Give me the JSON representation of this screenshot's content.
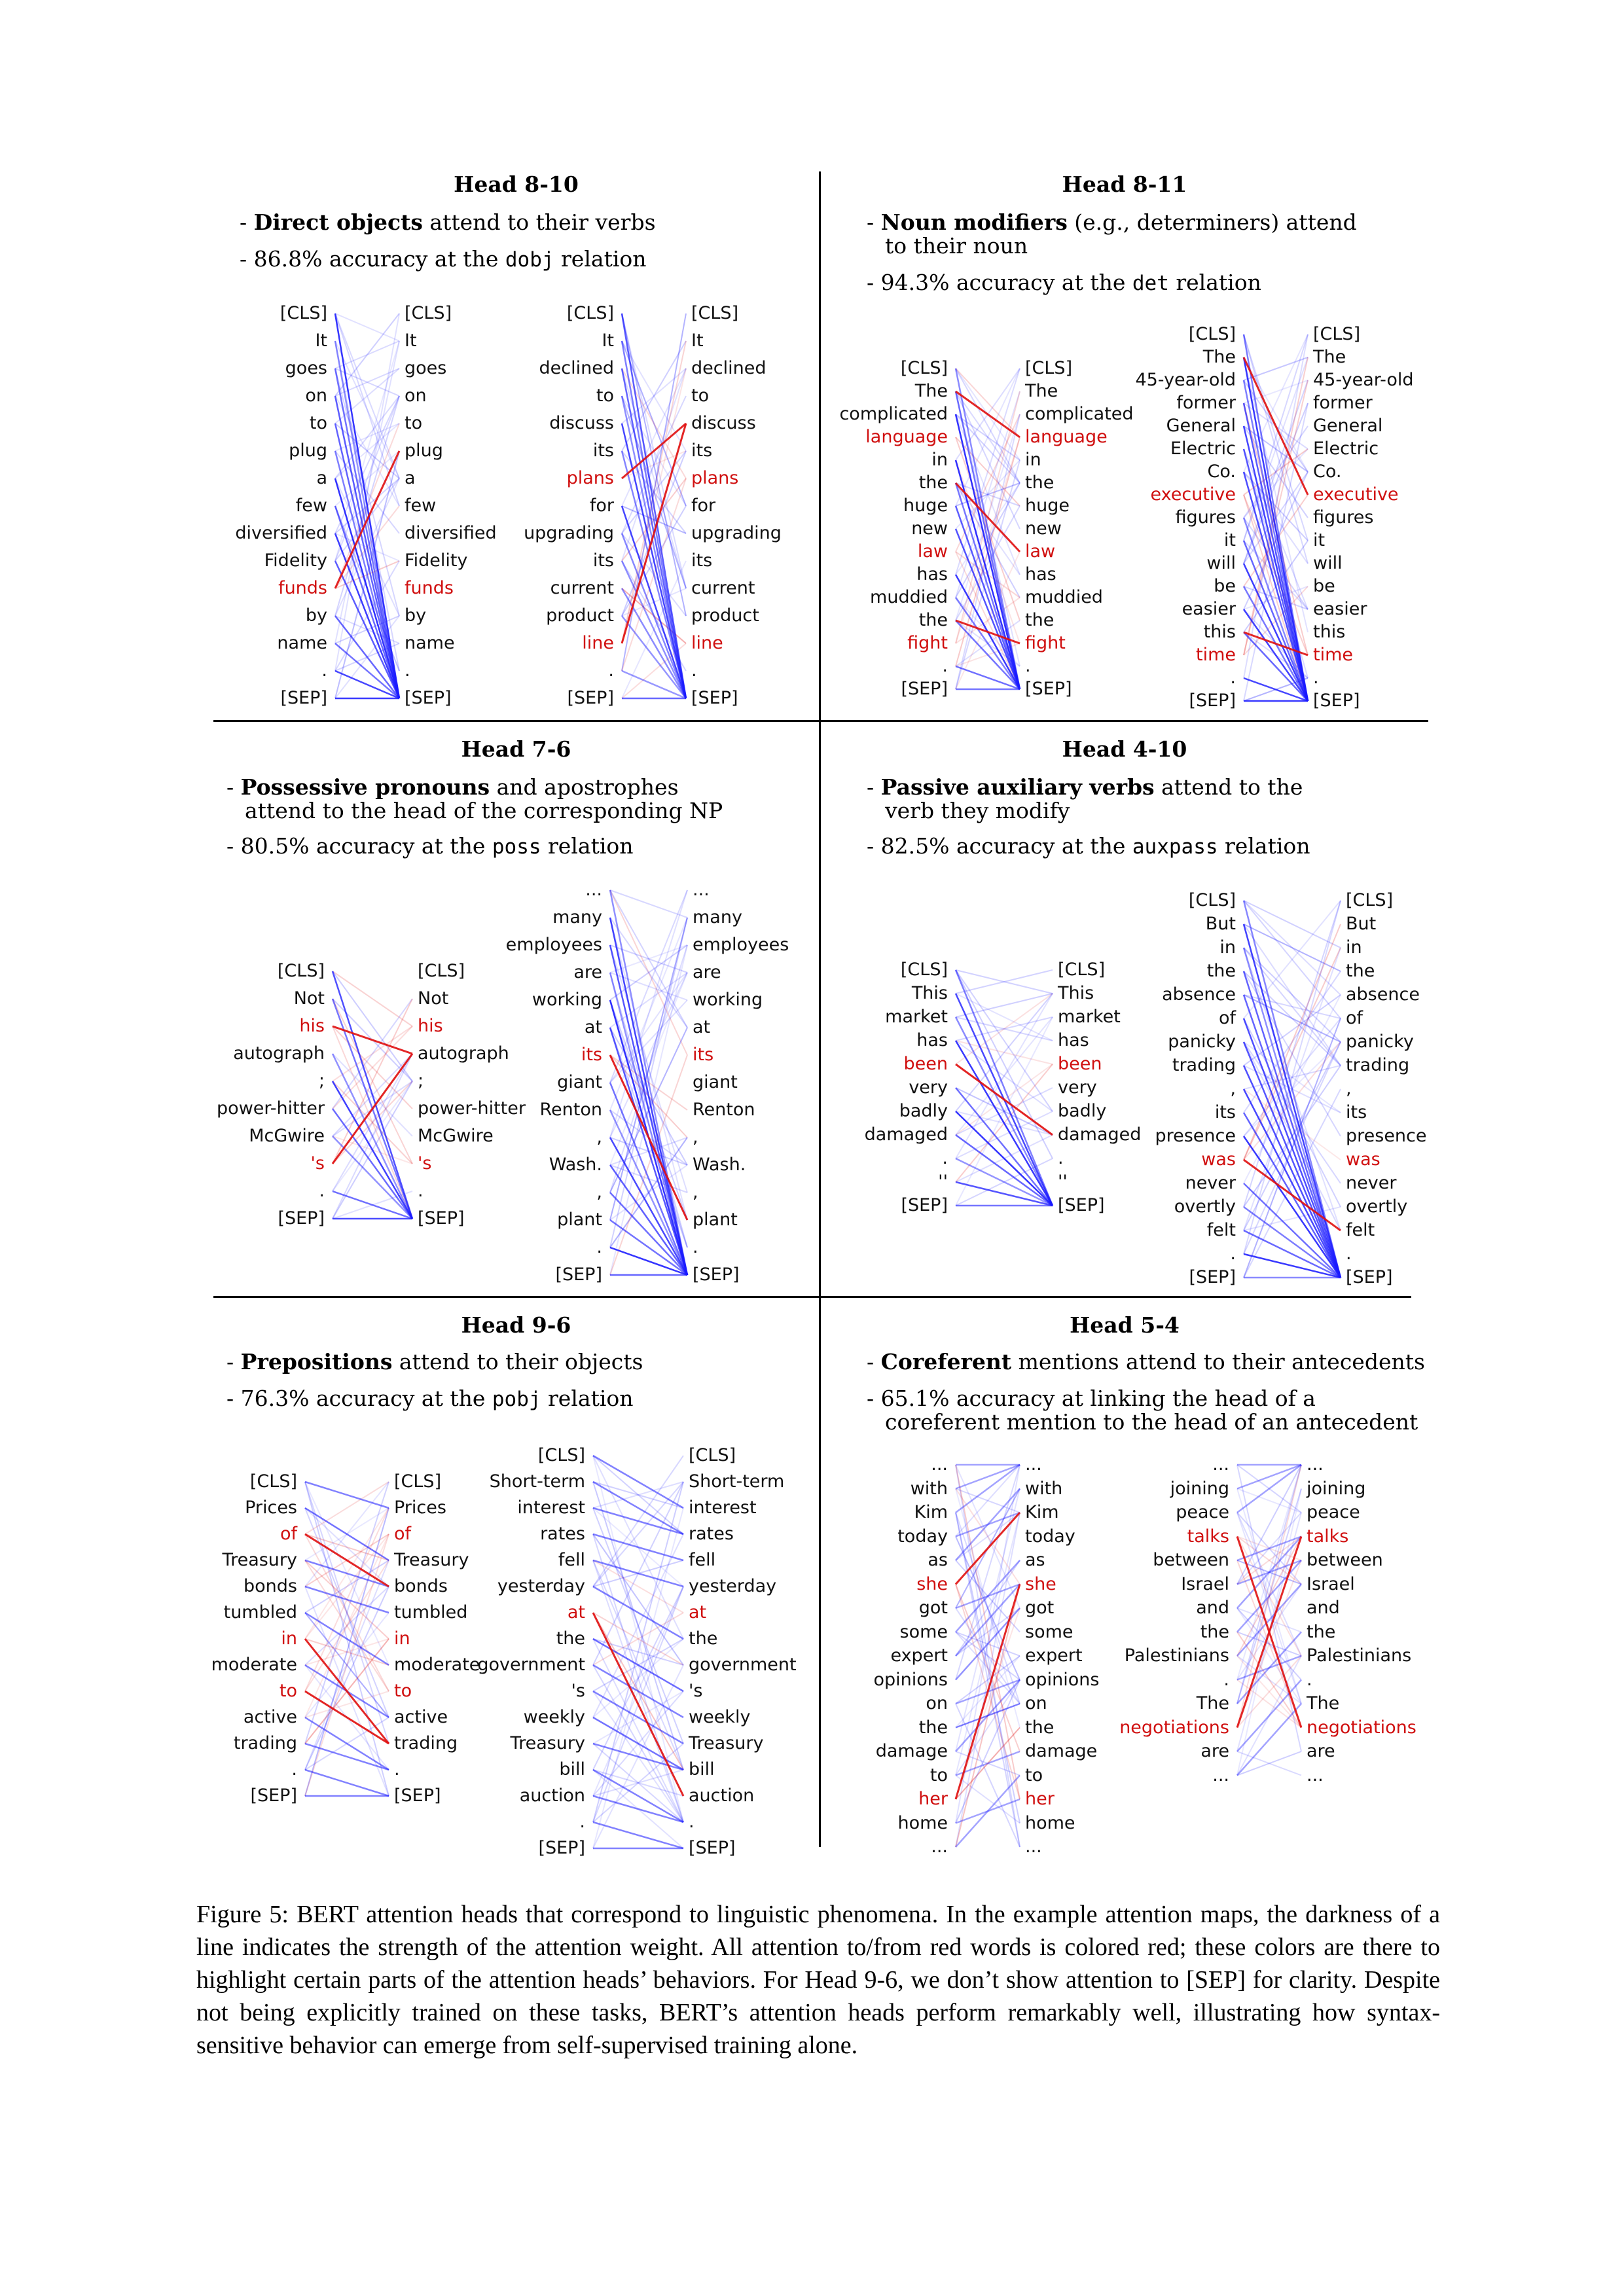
{
  "panels": [
    {
      "title": "Head 8-10",
      "bullet1": {
        "bold": "Direct objects",
        "rest": " attend to their verbs",
        "cont": ""
      },
      "bullet2": {
        "pre": "- 86.8% accuracy at the ",
        "mono": "dobj",
        "post": " relation",
        "cont": ""
      },
      "examples": [
        {
          "tokens": [
            "[CLS]",
            "It",
            "goes",
            "on",
            "to",
            "plug",
            "a",
            "few",
            "diversified",
            "Fidelity",
            "funds",
            "by",
            "name",
            ".",
            "[SEP]"
          ],
          "red": [
            10
          ],
          "dep": 10,
          "head": 5
        },
        {
          "tokens": [
            "[CLS]",
            "It",
            "declined",
            "to",
            "discuss",
            "its",
            "plans",
            "for",
            "upgrading",
            "its",
            "current",
            "product",
            "line",
            ".",
            "[SEP]"
          ],
          "red": [
            6,
            12
          ],
          "dep": 6,
          "head": 4,
          "dep2": 12,
          "head2": 4
        }
      ]
    },
    {
      "title": "Head 8-11",
      "bullet1": {
        "bold": "Noun modifiers",
        "rest": " (e.g., determiners) attend",
        "cont": "to their noun"
      },
      "bullet2": {
        "pre": "- 94.3% accuracy at the ",
        "mono": "det",
        "post": " relation",
        "cont": ""
      },
      "examples": [
        {
          "tokens": [
            "[CLS]",
            "The",
            "complicated",
            "language",
            "in",
            "the",
            "huge",
            "new",
            "law",
            "has",
            "muddied",
            "the",
            "fight",
            ".",
            "[SEP]"
          ],
          "red": [
            3,
            8,
            12
          ],
          "dep": 1,
          "head": 3,
          "dep2": 5,
          "head2": 8,
          "dep3": 11,
          "head3": 12
        },
        {
          "tokens": [
            "[CLS]",
            "The",
            "45-year-old",
            "former",
            "General",
            "Electric",
            "Co.",
            "executive",
            "figures",
            "it",
            "will",
            "be",
            "easier",
            "this",
            "time",
            ".",
            "[SEP]"
          ],
          "red": [
            7,
            14
          ],
          "dep": 1,
          "head": 7,
          "dep2": 13,
          "head2": 14
        }
      ]
    },
    {
      "title": "Head 7-6",
      "bullet1": {
        "bold": "Possessive pronouns",
        "rest": " and apostrophes",
        "cont": "attend to the head of the corresponding NP"
      },
      "bullet2": {
        "pre": "- 80.5% accuracy at the ",
        "mono": "poss",
        "post": " relation",
        "cont": ""
      },
      "examples": [
        {
          "tokens": [
            "[CLS]",
            "Not",
            "his",
            "autograph",
            ";",
            "power-hitter",
            "McGwire",
            "'s",
            ".",
            "[SEP]"
          ],
          "red": [
            2,
            7
          ],
          "dep": 2,
          "head": 3,
          "dep2": 7,
          "head2": 3
        },
        {
          "tokens": [
            "...",
            "many",
            "employees",
            "are",
            "working",
            "at",
            "its",
            "giant",
            "Renton",
            ",",
            "Wash.",
            ",",
            "plant",
            ".",
            "[SEP]"
          ],
          "red": [
            6
          ],
          "dep": 6,
          "head": 12
        }
      ]
    },
    {
      "title": "Head 4-10",
      "bullet1": {
        "bold": "Passive auxiliary verbs",
        "rest": " attend to the",
        "cont": "verb they modify"
      },
      "bullet2": {
        "pre": "- 82.5% accuracy at the ",
        "mono": "auxpass",
        "post": " relation",
        "cont": ""
      },
      "examples": [
        {
          "tokens": [
            "[CLS]",
            "This",
            "market",
            "has",
            "been",
            "very",
            "badly",
            "damaged",
            ".",
            "''",
            "[SEP]"
          ],
          "red": [
            4
          ],
          "dep": 4,
          "head": 7
        },
        {
          "tokens": [
            "[CLS]",
            "But",
            "in",
            "the",
            "absence",
            "of",
            "panicky",
            "trading",
            ",",
            "its",
            "presence",
            "was",
            "never",
            "overtly",
            "felt",
            ".",
            "[SEP]"
          ],
          "red": [
            11
          ],
          "dep": 11,
          "head": 14
        }
      ]
    },
    {
      "title": "Head 9-6",
      "bullet1": {
        "bold": "Prepositions",
        "rest": " attend to their objects",
        "cont": ""
      },
      "bullet2": {
        "pre": "- 76.3% accuracy at the ",
        "mono": "pobj",
        "post": " relation",
        "cont": ""
      },
      "examples": [
        {
          "tokens": [
            "[CLS]",
            "Prices",
            "of",
            "Treasury",
            "bonds",
            "tumbled",
            "in",
            "moderate",
            "to",
            "active",
            "trading",
            ".",
            "[SEP]"
          ],
          "red": [
            2,
            6,
            8
          ],
          "dep": 2,
          "head": 4,
          "dep2": 6,
          "head2": 10,
          "dep3": 8,
          "head3": 10
        },
        {
          "tokens": [
            "[CLS]",
            "Short-term",
            "interest",
            "rates",
            "fell",
            "yesterday",
            "at",
            "the",
            "government",
            "'s",
            "weekly",
            "Treasury",
            "bill",
            "auction",
            ".",
            "[SEP]"
          ],
          "red": [
            6
          ],
          "dep": 6,
          "head": 13
        }
      ]
    },
    {
      "title": "Head 5-4",
      "bullet1": {
        "bold": "Coreferent",
        "rest": " mentions attend to their antecedents",
        "cont": ""
      },
      "bullet2": {
        "pre": "- 65.1% accuracy at linking the head of a",
        "mono": "",
        "post": "",
        "cont": "coreferent mention to the head of an antecedent"
      },
      "examples": [
        {
          "tokens": [
            "...",
            "with",
            "Kim",
            "today",
            "as",
            "she",
            "got",
            "some",
            "expert",
            "opinions",
            "on",
            "the",
            "damage",
            "to",
            "her",
            "home",
            "..."
          ],
          "red": [
            5,
            14
          ],
          "dep": 5,
          "head": 2,
          "dep2": 14,
          "head2": 5
        },
        {
          "tokens": [
            "...",
            "joining",
            "peace",
            "talks",
            "between",
            "Israel",
            "and",
            "the",
            "Palestinians",
            ".",
            "The",
            "negotiations",
            "are",
            "..."
          ],
          "red": [
            3,
            11
          ],
          "dep": 11,
          "head": 3,
          "dep2": 3,
          "head2": 11
        }
      ]
    }
  ],
  "caption": "Figure 5: BERT attention heads that correspond to linguistic phenomena. In the example attention maps, the darkness of a line indicates the strength of the attention weight. All attention to/from red words is colored red; these colors are there to highlight certain parts of the attention heads’ behaviors. For Head 9-6, we don’t show attention to [SEP] for clarity. Despite not being explicitly trained on these tasks, BERT’s attention heads perform remarkably well, illustrating how syntax-sensitive behavior can emerge from self-supervised training alone.",
  "colors": {
    "attention": "#1a1aff",
    "highlight": "#e01010",
    "text": "#111111"
  }
}
